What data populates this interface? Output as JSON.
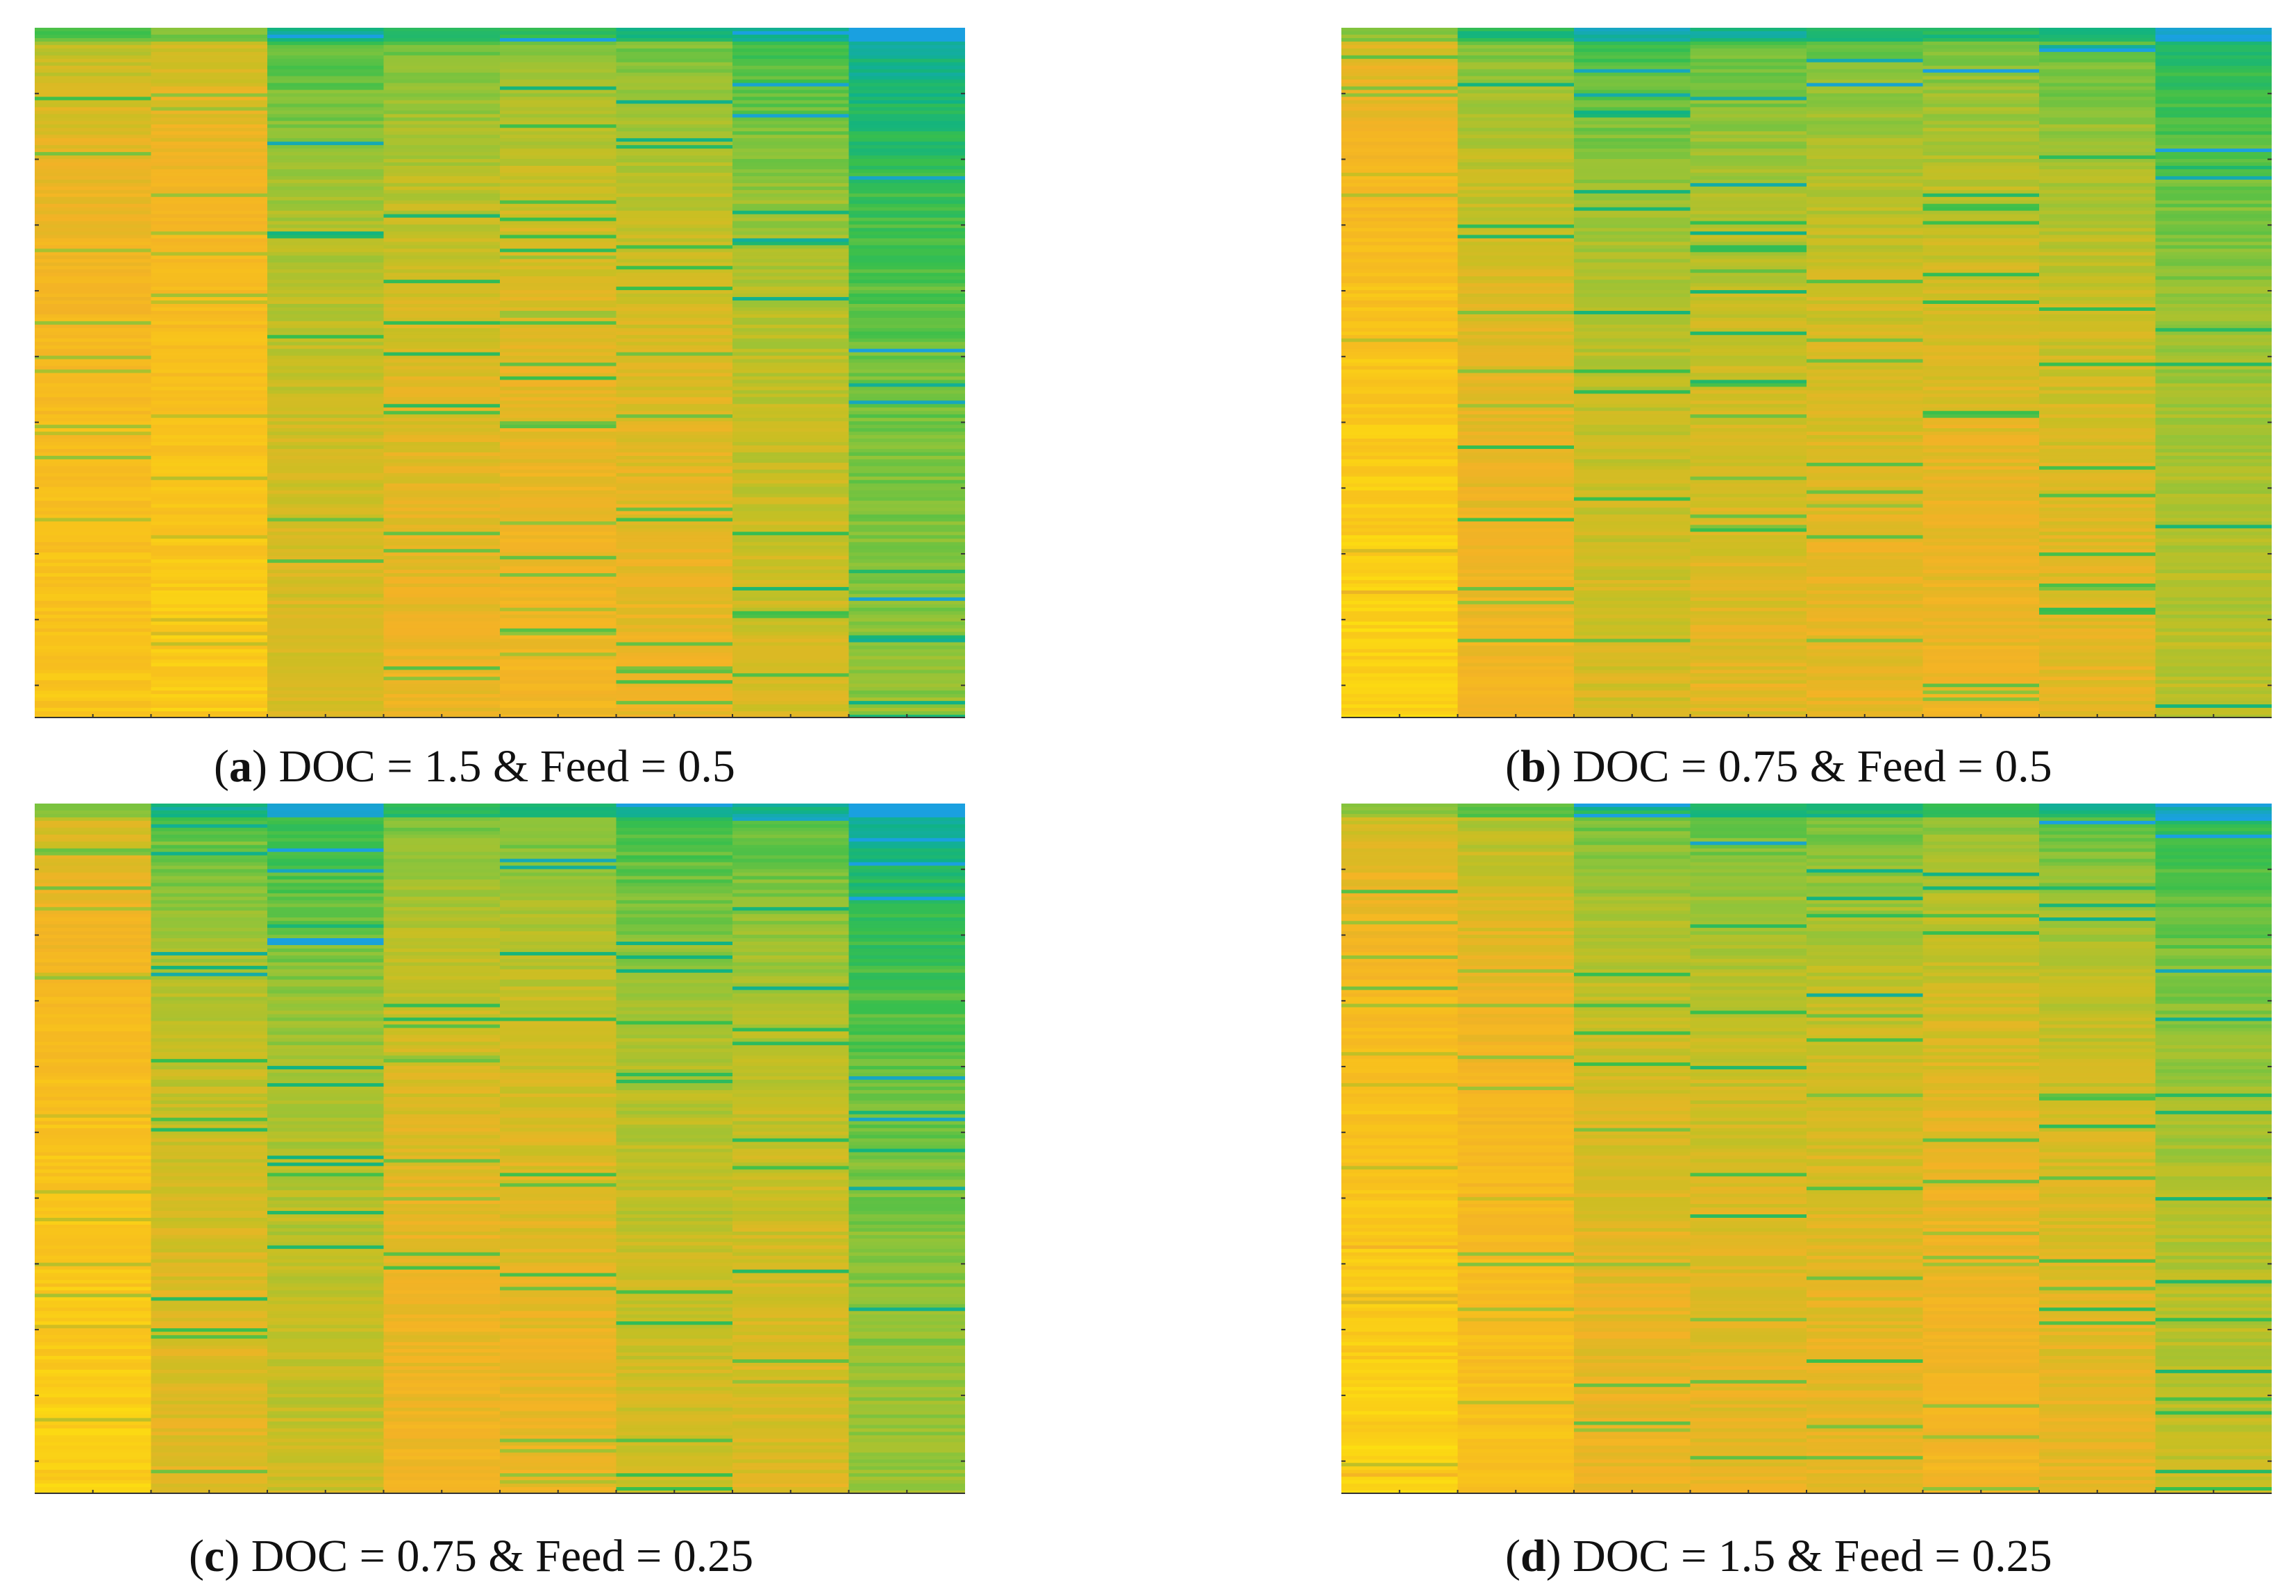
{
  "chart_data": [
    {
      "type": "heatmap",
      "panel_letter": "a",
      "caption": ") DOC = 1.5 & Feed = 0.5",
      "columns": 8,
      "rows": 200,
      "column_levels": [
        0.8,
        0.84,
        0.58,
        0.64,
        0.68,
        0.64,
        0.55,
        0.38
      ],
      "trend": "rising from top to bottom",
      "colormap": [
        "#1aa0e0",
        "#10b383",
        "#39bf4c",
        "#8fc43a",
        "#c9bf23",
        "#f3b226",
        "#f8c21c",
        "#fde20f"
      ],
      "x_ticks": 15,
      "y_ticks": 10
    },
    {
      "type": "heatmap",
      "panel_letter": "b",
      "caption": ") DOC = 0.75 & Feed = 0.5",
      "columns": 8,
      "rows": 200,
      "column_levels": [
        0.88,
        0.67,
        0.56,
        0.6,
        0.63,
        0.65,
        0.61,
        0.48
      ],
      "trend": "rising from top to bottom",
      "colormap": [
        "#1aa0e0",
        "#10b383",
        "#39bf4c",
        "#8fc43a",
        "#c9bf23",
        "#f3b226",
        "#f8c21c",
        "#fde20f"
      ],
      "x_ticks": 15,
      "y_ticks": 10
    },
    {
      "type": "heatmap",
      "panel_letter": "c",
      "caption": ") DOC = 0.75 & Feed = 0.25",
      "columns": 8,
      "rows": 200,
      "column_levels": [
        0.86,
        0.6,
        0.52,
        0.66,
        0.64,
        0.55,
        0.58,
        0.4
      ],
      "trend": "rising from top to bottom",
      "colormap": [
        "#1aa0e0",
        "#10b383",
        "#39bf4c",
        "#8fc43a",
        "#c9bf23",
        "#f3b226",
        "#f8c21c",
        "#fde20f"
      ],
      "x_ticks": 15,
      "y_ticks": 10
    },
    {
      "type": "heatmap",
      "panel_letter": "d",
      "caption": ") DOC = 1.5 & Feed = 0.25",
      "columns": 8,
      "rows": 200,
      "column_levels": [
        0.87,
        0.78,
        0.64,
        0.62,
        0.63,
        0.68,
        0.62,
        0.5
      ],
      "trend": "rising from top to bottom",
      "colormap": [
        "#1aa0e0",
        "#10b383",
        "#39bf4c",
        "#8fc43a",
        "#c9bf23",
        "#f3b226",
        "#f8c21c",
        "#fde20f"
      ],
      "x_ticks": 15,
      "y_ticks": 10
    }
  ],
  "captions": [
    {
      "open": "(",
      "letter": "a",
      "text": ") DOC = 1.5 & Feed = 0.5"
    },
    {
      "open": "(",
      "letter": "b",
      "text": ") DOC = 0.75 & Feed = 0.5"
    },
    {
      "open": "(",
      "letter": "c",
      "text": ") DOC = 0.75 & Feed = 0.25"
    },
    {
      "open": "(",
      "letter": "d",
      "text": ") DOC = 1.5 & Feed = 0.25"
    }
  ]
}
